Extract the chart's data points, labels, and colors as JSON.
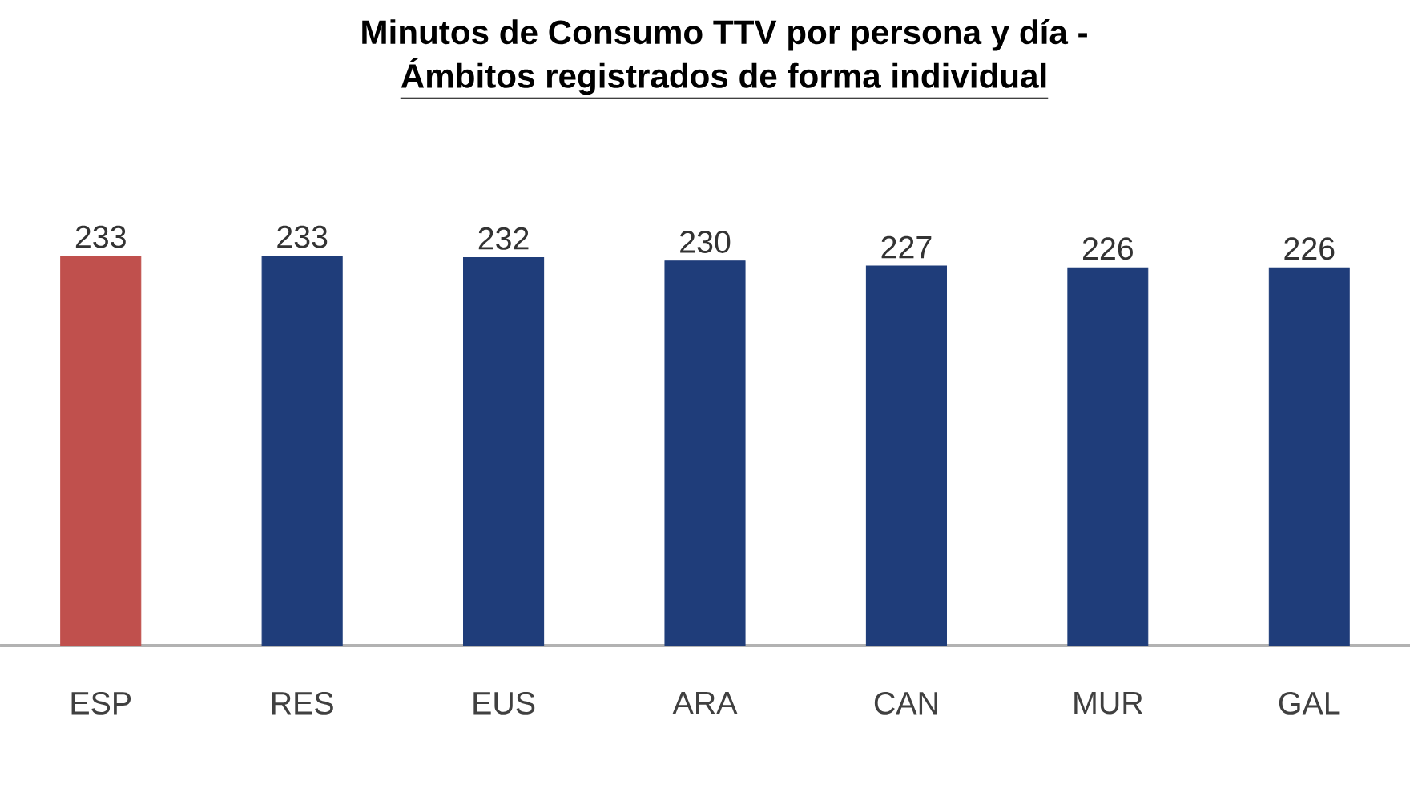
{
  "chart_data": {
    "type": "bar",
    "title": "Minutos de Consumo TTV por persona y día -",
    "subtitle": "Ámbitos registrados de forma individual",
    "categories": [
      "ESP",
      "RES",
      "EUS",
      "ARA",
      "CAN",
      "MUR",
      "GAL"
    ],
    "values": [
      233,
      233,
      232,
      230,
      227,
      226,
      226
    ],
    "colors": [
      "#c0504d",
      "#1f3d7a",
      "#1f3d7a",
      "#1f3d7a",
      "#1f3d7a",
      "#1f3d7a",
      "#1f3d7a"
    ],
    "tick_labels": "x",
    "data_labels": true
  }
}
